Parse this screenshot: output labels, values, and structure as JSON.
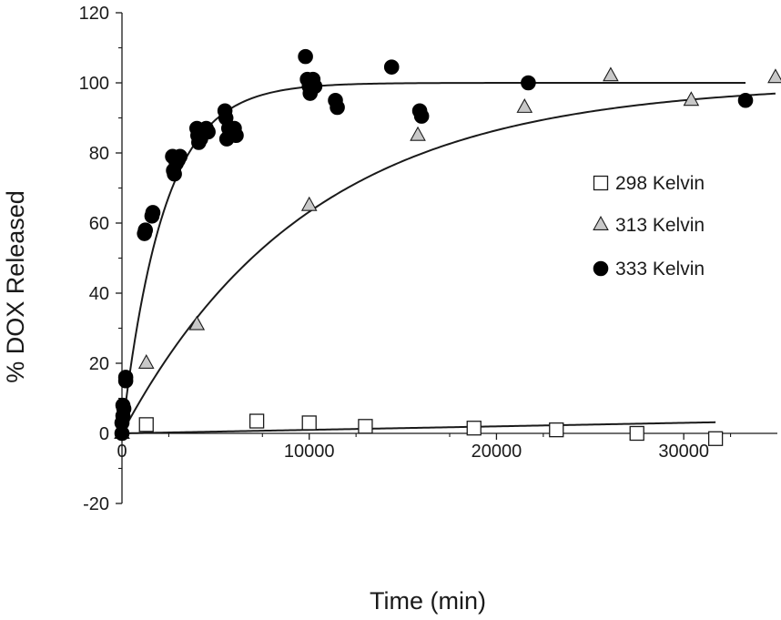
{
  "chart_data": {
    "type": "scatter",
    "title": "",
    "xlabel": "Time (min)",
    "ylabel": "% DOX Released",
    "xlim": [
      0,
      35000
    ],
    "ylim": [
      -20,
      120
    ],
    "xticks": [
      0,
      10000,
      20000,
      30000
    ],
    "xtick_labels": [
      "0",
      "10000",
      "20000",
      "30000"
    ],
    "yticks": [
      -20,
      0,
      20,
      40,
      60,
      80,
      100,
      120
    ],
    "ytick_labels": [
      "-20",
      "0",
      "20",
      "40",
      "60",
      "80",
      "100",
      "120"
    ],
    "grid": false,
    "legend_position": "right",
    "series": [
      {
        "name": "298 Kelvin",
        "marker": "square-open",
        "color": "#ffffff",
        "stroke": "#1a1a1a",
        "x": [
          1300,
          7200,
          10000,
          13000,
          18800,
          23200,
          27500,
          31700
        ],
        "y": [
          2.5,
          3.5,
          3,
          2,
          1.5,
          1,
          0,
          -1.5
        ],
        "fit": {
          "model": "linear",
          "x_end": 31700,
          "slope": 0.0001,
          "intercept": 0
        }
      },
      {
        "name": "313 Kelvin",
        "marker": "triangle",
        "color": "#c8c8c8",
        "stroke": "#1a1a1a",
        "x": [
          0,
          1300,
          4000,
          10000,
          15800,
          21500,
          26100,
          30400,
          34900
        ],
        "y": [
          0,
          20,
          31,
          65,
          85,
          93,
          102,
          95,
          101.5
        ],
        "fit": {
          "model": "exp_rise",
          "x_end": 34900,
          "plateau": 100,
          "k": 0.0001
        }
      },
      {
        "name": "333 Kelvin",
        "marker": "circle",
        "color": "#000000",
        "stroke": "#000000",
        "x": [
          0,
          0,
          50,
          50,
          100,
          200,
          200,
          1200,
          1250,
          1600,
          1650,
          2700,
          2750,
          2800,
          2900,
          3000,
          3100,
          4000,
          4050,
          4100,
          4200,
          4300,
          4500,
          4600,
          5500,
          5550,
          5600,
          5700,
          6000,
          6100,
          9800,
          9900,
          10000,
          10050,
          10100,
          10200,
          10300,
          11400,
          11500,
          14400,
          15900,
          16000,
          21700,
          33300
        ],
        "y": [
          0,
          3,
          5,
          8,
          7,
          15,
          16,
          57,
          58,
          62,
          63,
          79,
          75,
          74,
          77,
          78,
          79,
          87,
          85,
          83,
          84,
          86,
          87,
          86,
          92,
          90,
          84,
          87,
          87,
          85,
          107.5,
          101,
          99,
          97,
          100,
          101,
          99,
          95,
          93,
          104.5,
          92,
          90.5,
          100,
          95
        ],
        "fit": {
          "model": "exp_rise",
          "x_end": 33300,
          "plateau": 100,
          "k": 0.00045
        }
      }
    ]
  }
}
